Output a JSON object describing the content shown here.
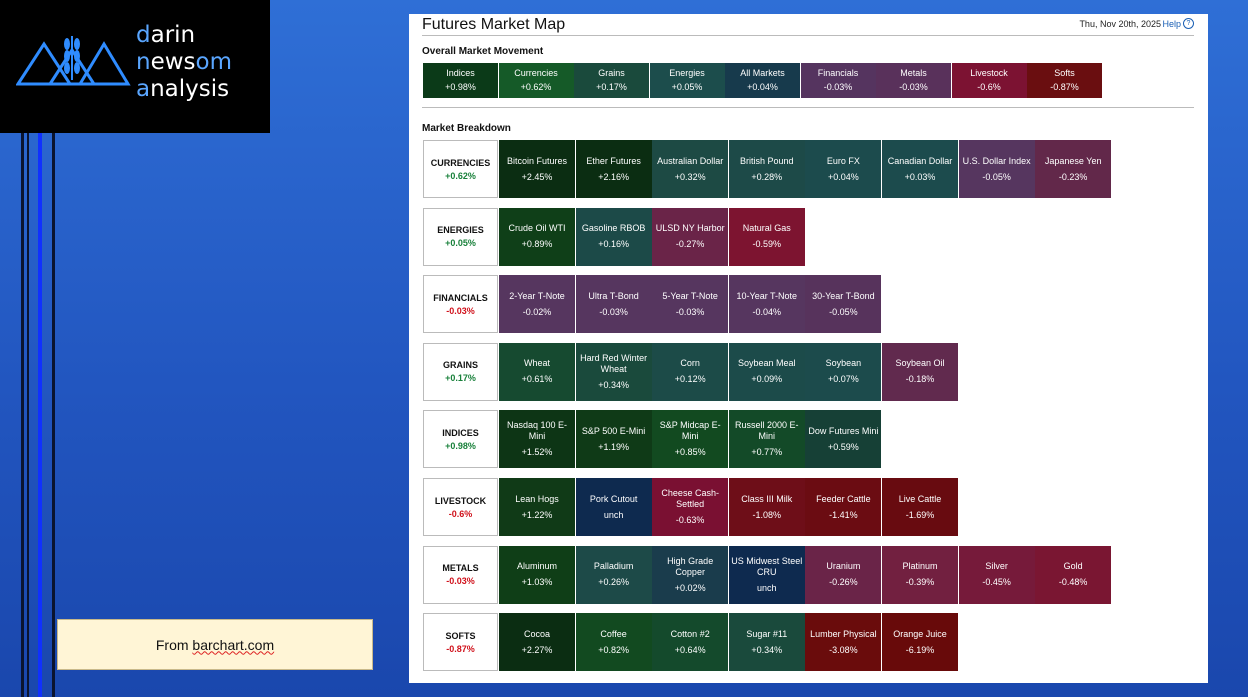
{
  "logo": {
    "line1": {
      "a": "d",
      "b": "arin"
    },
    "line2": {
      "a": "n",
      "b": "ews",
      "c": "om"
    },
    "line3": {
      "a": "a",
      "b": "nalysis"
    }
  },
  "source": {
    "prefix": "From ",
    "link": "barchart.com"
  },
  "header": {
    "title": "Futures Market Map",
    "date": "Thu, Nov 20th, 2025",
    "help": "Help",
    "help_icon": "?"
  },
  "overall": {
    "title": "Overall Market Movement",
    "items": [
      {
        "label": "Indices",
        "value": "+0.98%",
        "color": "#0b3a18"
      },
      {
        "label": "Currencies",
        "value": "+0.62%",
        "color": "#155a28"
      },
      {
        "label": "Grains",
        "value": "+0.17%",
        "color": "#1a4a3c"
      },
      {
        "label": "Energies",
        "value": "+0.05%",
        "color": "#1c4d4c"
      },
      {
        "label": "All Markets",
        "value": "+0.04%",
        "color": "#173a4c"
      },
      {
        "label": "Financials",
        "value": "-0.03%",
        "color": "#55345f"
      },
      {
        "label": "Metals",
        "value": "-0.03%",
        "color": "#59315b"
      },
      {
        "label": "Livestock",
        "value": "-0.6%",
        "color": "#7c1232"
      },
      {
        "label": "Softs",
        "value": "-0.87%",
        "color": "#6a0e10"
      }
    ]
  },
  "breakdown": {
    "title": "Market Breakdown",
    "rows": [
      {
        "name": "CURRENCIES",
        "change": "+0.62%",
        "sign": "pos",
        "items": [
          {
            "label": "Bitcoin Futures",
            "value": "+2.45%",
            "color": "#0b2d12"
          },
          {
            "label": "Ether Futures",
            "value": "+2.16%",
            "color": "#0b2d12"
          },
          {
            "label": "Australian Dollar",
            "value": "+0.32%",
            "color": "#1d4a44"
          },
          {
            "label": "British Pound",
            "value": "+0.28%",
            "color": "#1d4a48"
          },
          {
            "label": "Euro FX",
            "value": "+0.04%",
            "color": "#1c4b4d"
          },
          {
            "label": "Canadian Dollar",
            "value": "+0.03%",
            "color": "#1c4b4d"
          },
          {
            "label": "U.S. Dollar Index",
            "value": "-0.05%",
            "color": "#56365f"
          },
          {
            "label": "Japanese Yen",
            "value": "-0.23%",
            "color": "#62284a"
          }
        ]
      },
      {
        "name": "ENERGIES",
        "change": "+0.05%",
        "sign": "pos",
        "items": [
          {
            "label": "Crude Oil WTI",
            "value": "+0.89%",
            "color": "#0f3f18"
          },
          {
            "label": "Gasoline RBOB",
            "value": "+0.16%",
            "color": "#1c4a48"
          },
          {
            "label": "ULSD NY Harbor",
            "value": "-0.27%",
            "color": "#6a2448"
          },
          {
            "label": "Natural Gas",
            "value": "-0.59%",
            "color": "#7d1430"
          }
        ]
      },
      {
        "name": "FINANCIALS",
        "change": "-0.03%",
        "sign": "neg",
        "items": [
          {
            "label": "2-Year T-Note",
            "value": "-0.02%",
            "color": "#56365f"
          },
          {
            "label": "Ultra T-Bond",
            "value": "-0.03%",
            "color": "#56365f"
          },
          {
            "label": "5-Year T-Note",
            "value": "-0.03%",
            "color": "#56365f"
          },
          {
            "label": "10-Year T-Note",
            "value": "-0.04%",
            "color": "#56365f"
          },
          {
            "label": "30-Year T-Bond",
            "value": "-0.05%",
            "color": "#57335c"
          }
        ]
      },
      {
        "name": "GRAINS",
        "change": "+0.17%",
        "sign": "pos",
        "items": [
          {
            "label": "Wheat",
            "value": "+0.61%",
            "color": "#164a30"
          },
          {
            "label": "Hard Red Winter Wheat",
            "value": "+0.34%",
            "color": "#1a4a3c"
          },
          {
            "label": "Corn",
            "value": "+0.12%",
            "color": "#1c4b48"
          },
          {
            "label": "Soybean Meal",
            "value": "+0.09%",
            "color": "#1c4b4a"
          },
          {
            "label": "Soybean",
            "value": "+0.07%",
            "color": "#1c4b4c"
          },
          {
            "label": "Soybean Oil",
            "value": "-0.18%",
            "color": "#612a4e"
          }
        ]
      },
      {
        "name": "INDICES",
        "change": "+0.98%",
        "sign": "pos",
        "items": [
          {
            "label": "Nasdaq 100 E-Mini",
            "value": "+1.52%",
            "color": "#0d3515"
          },
          {
            "label": "S&P 500 E-Mini",
            "value": "+1.19%",
            "color": "#0f3a17"
          },
          {
            "label": "S&P Midcap E-Mini",
            "value": "+0.85%",
            "color": "#124a20"
          },
          {
            "label": "Russell 2000 E-Mini",
            "value": "+0.77%",
            "color": "#134a28"
          },
          {
            "label": "Dow Futures Mini",
            "value": "+0.59%",
            "color": "#164036"
          }
        ]
      },
      {
        "name": "LIVESTOCK",
        "change": "-0.6%",
        "sign": "neg",
        "items": [
          {
            "label": "Lean Hogs",
            "value": "+1.22%",
            "color": "#103a17"
          },
          {
            "label": "Pork Cutout",
            "value": "unch",
            "color": "#0e2a4f"
          },
          {
            "label": "Cheese Cash-Settled",
            "value": "-0.63%",
            "color": "#7a1032"
          },
          {
            "label": "Class III Milk",
            "value": "-1.08%",
            "color": "#6e0e18"
          },
          {
            "label": "Feeder Cattle",
            "value": "-1.41%",
            "color": "#6b0c12"
          },
          {
            "label": "Live Cattle",
            "value": "-1.69%",
            "color": "#680b10"
          }
        ]
      },
      {
        "name": "METALS",
        "change": "-0.03%",
        "sign": "neg",
        "items": [
          {
            "label": "Aluminum",
            "value": "+1.03%",
            "color": "#0f3e17"
          },
          {
            "label": "Palladium",
            "value": "+0.26%",
            "color": "#1d4a48"
          },
          {
            "label": "High Grade Copper",
            "value": "+0.02%",
            "color": "#1a3c4c"
          },
          {
            "label": "US Midwest Steel CRU",
            "value": "unch",
            "color": "#0e2a4f"
          },
          {
            "label": "Uranium",
            "value": "-0.26%",
            "color": "#6a2448"
          },
          {
            "label": "Platinum",
            "value": "-0.39%",
            "color": "#722040"
          },
          {
            "label": "Silver",
            "value": "-0.45%",
            "color": "#761a3a"
          },
          {
            "label": "Gold",
            "value": "-0.48%",
            "color": "#7a1632"
          }
        ]
      },
      {
        "name": "SOFTS",
        "change": "-0.87%",
        "sign": "neg",
        "items": [
          {
            "label": "Cocoa",
            "value": "+2.27%",
            "color": "#0b2d12"
          },
          {
            "label": "Coffee",
            "value": "+0.82%",
            "color": "#124a20"
          },
          {
            "label": "Cotton #2",
            "value": "+0.64%",
            "color": "#144a2c"
          },
          {
            "label": "Sugar #11",
            "value": "+0.34%",
            "color": "#1a4a3c"
          },
          {
            "label": "Lumber Physical",
            "value": "-3.08%",
            "color": "#6a0c0c"
          },
          {
            "label": "Orange Juice",
            "value": "-6.19%",
            "color": "#680a0a"
          }
        ]
      }
    ]
  }
}
